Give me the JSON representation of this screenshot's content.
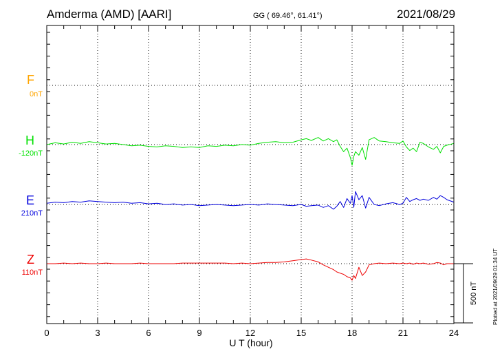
{
  "header": {
    "station": "Amderma (AMD)  [AARI]",
    "coords": "GG ( 69.46°,  61.41°)",
    "date": "2021/08/29"
  },
  "side_note": "Plotted at 2021/09/29 01:34 UT",
  "chart_data": {
    "type": "line",
    "xlabel": "U T (hour)",
    "xlim": [
      0,
      24
    ],
    "xticks": [
      "0",
      "3",
      "6",
      "9",
      "12",
      "15",
      "18",
      "21",
      "24"
    ],
    "scale_bar_label": "500 nT",
    "scale_bar_nT": 500,
    "series": [
      {
        "name": "F",
        "baseline_label": "0nT",
        "color": "#ffa500",
        "offset_nT": 0,
        "x": [],
        "y": []
      },
      {
        "name": "H",
        "baseline_label": "-120nT",
        "color": "#00e000",
        "offset_nT": 0,
        "x": [
          0,
          0.5,
          1,
          1.5,
          2,
          2.5,
          3,
          3.5,
          4,
          4.5,
          5,
          5.5,
          6,
          6.5,
          7,
          7.5,
          8,
          8.5,
          9,
          9.5,
          10,
          10.5,
          11,
          11.5,
          12,
          12.5,
          13,
          13.5,
          14,
          14.5,
          15,
          15.3,
          15.6,
          16,
          16.3,
          16.6,
          16.9,
          17.1,
          17.3,
          17.5,
          17.7,
          17.9,
          18.0,
          18.1,
          18.2,
          18.4,
          18.6,
          18.8,
          19.0,
          19.3,
          19.6,
          20,
          20.4,
          20.8,
          21,
          21.2,
          21.4,
          21.6,
          21.8,
          22,
          22.2,
          22.5,
          22.8,
          23,
          23.2,
          23.4,
          23.6,
          24
        ],
        "y": [
          0,
          3,
          1,
          4,
          2,
          5,
          3,
          1,
          2,
          0,
          -2,
          -1,
          -3,
          -4,
          -2,
          -3,
          -5,
          -4,
          -5,
          -2,
          -3,
          -1,
          -2,
          0,
          -1,
          2,
          4,
          5,
          3,
          4,
          8,
          10,
          7,
          12,
          6,
          10,
          5,
          8,
          -3,
          -12,
          -6,
          -22,
          -35,
          -20,
          -12,
          -18,
          -5,
          -25,
          8,
          12,
          6,
          5,
          3,
          2,
          6,
          -4,
          -10,
          -6,
          -12,
          4,
          2,
          -4,
          -8,
          -3,
          -14,
          -3,
          -1,
          2
        ]
      },
      {
        "name": "E",
        "baseline_label": "210nT",
        "color": "#0000dd",
        "offset_nT": 0,
        "x": [
          0,
          0.5,
          1,
          1.5,
          2,
          2.5,
          3,
          3.5,
          4,
          4.5,
          5,
          5.5,
          6,
          6.5,
          7,
          7.5,
          8,
          8.5,
          9,
          9.5,
          10,
          10.5,
          11,
          11.5,
          12,
          12.5,
          13,
          13.5,
          14,
          14.5,
          15,
          15.3,
          15.6,
          16,
          16.3,
          16.6,
          16.9,
          17.1,
          17.3,
          17.5,
          17.7,
          17.9,
          18.0,
          18.1,
          18.2,
          18.4,
          18.6,
          18.8,
          19.0,
          19.3,
          19.6,
          20,
          20.4,
          20.8,
          21,
          21.2,
          21.4,
          21.6,
          21.8,
          22,
          22.2,
          22.5,
          22.8,
          23,
          23.2,
          23.4,
          23.6,
          24
        ],
        "y": [
          2,
          4,
          3,
          5,
          4,
          6,
          5,
          4,
          3,
          4,
          2,
          3,
          1,
          2,
          0,
          1,
          -1,
          0,
          -2,
          -1,
          0,
          -1,
          -2,
          -1,
          0,
          -1,
          1,
          0,
          -1,
          -2,
          0,
          -3,
          -2,
          -1,
          -5,
          -2,
          -8,
          -3,
          5,
          -5,
          10,
          2,
          15,
          -5,
          22,
          8,
          15,
          -6,
          12,
          0,
          -2,
          1,
          3,
          0,
          2,
          12,
          5,
          8,
          10,
          7,
          9,
          7,
          12,
          9,
          15,
          12,
          8,
          4
        ]
      },
      {
        "name": "Z",
        "baseline_label": "110nT",
        "color": "#ee0000",
        "offset_nT": 0,
        "x": [
          0,
          0.5,
          1,
          1.5,
          2,
          2.5,
          3,
          3.5,
          4,
          4.5,
          5,
          5.5,
          6,
          6.5,
          7,
          7.5,
          8,
          8.5,
          9,
          9.5,
          10,
          10.5,
          11,
          11.5,
          12,
          12.5,
          13,
          13.5,
          14,
          14.5,
          15,
          15.3,
          15.6,
          16,
          16.3,
          16.6,
          16.9,
          17.1,
          17.3,
          17.5,
          17.7,
          17.9,
          18.0,
          18.1,
          18.2,
          18.4,
          18.6,
          18.8,
          19.0,
          19.3,
          19.6,
          20,
          20.4,
          20.8,
          21,
          21.2,
          21.4,
          21.6,
          21.8,
          22,
          22.2,
          22.5,
          22.8,
          23,
          23.2,
          23.4,
          23.6,
          24
        ],
        "y": [
          0,
          0,
          1,
          0,
          1,
          0,
          0,
          1,
          0,
          0,
          0,
          1,
          0,
          0,
          0,
          0,
          1,
          1,
          1,
          1,
          1,
          1,
          0,
          1,
          0,
          1,
          2,
          2,
          3,
          5,
          7,
          8,
          6,
          3,
          -2,
          -6,
          -10,
          -14,
          -16,
          -18,
          -22,
          -24,
          -28,
          -20,
          -25,
          -6,
          -20,
          -14,
          -2,
          0,
          1,
          0,
          1,
          0,
          1,
          0,
          1,
          -1,
          1,
          0,
          1,
          -1,
          0,
          2,
          1,
          -2,
          0,
          0
        ]
      }
    ]
  }
}
